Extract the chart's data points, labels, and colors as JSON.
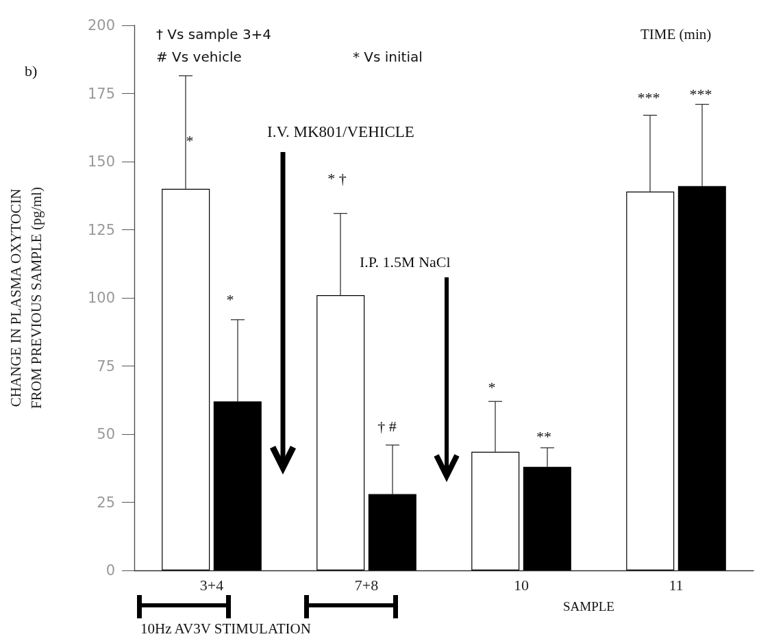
{
  "chart_data": {
    "type": "bar",
    "ylabel": "CHANGE IN PLASMA OXYTOCIN\nFROM PREVIOUS SAMPLE (pg/ml)",
    "xlabel": "SAMPLE",
    "categories": [
      "3+4",
      "7+8",
      "10",
      "11"
    ],
    "series": [
      {
        "color": "#ffffff",
        "values": [
          140,
          101,
          43.5,
          139
        ],
        "errors": [
          [
            140,
            181.5
          ],
          [
            101,
            131
          ],
          [
            43.5,
            62
          ],
          [
            139,
            167
          ]
        ]
      },
      {
        "color": "#000000",
        "values": [
          62,
          28,
          38,
          141
        ],
        "errors": [
          [
            62,
            92
          ],
          [
            28,
            46
          ],
          [
            38,
            45
          ],
          [
            141,
            171
          ]
        ]
      }
    ],
    "ylim": [
      0,
      200
    ],
    "yticks": [
      0,
      25,
      50,
      75,
      100,
      125,
      150,
      175,
      200
    ],
    "grid": false,
    "annotations": [
      "b)",
      "† Vs sample 3+4",
      "# Vs vehicle",
      "* Vs initial",
      "TIME (min)",
      "I.V. MK801/VEHICLE",
      "I.P. 1.5M NaCl",
      "10Hz AV3V STIMULATION",
      "*",
      "*",
      "* †",
      "† #",
      "*",
      "**",
      "***",
      "***"
    ]
  }
}
